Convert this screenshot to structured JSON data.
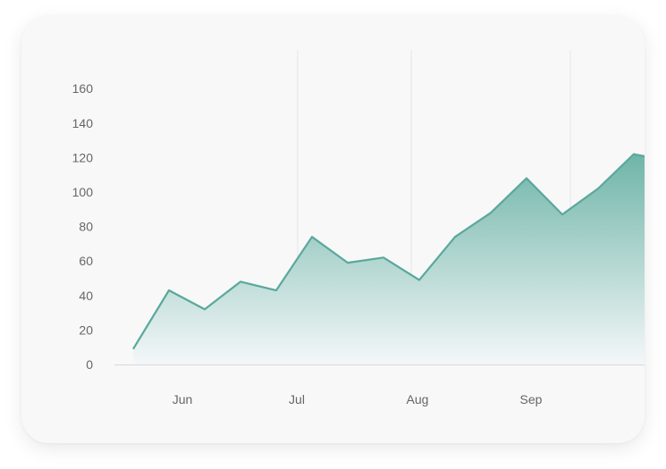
{
  "chart_data": {
    "type": "area",
    "title": "",
    "xlabel": "",
    "ylabel": "",
    "x_tick_labels": [
      "Jun",
      "Jul",
      "Aug",
      "Sep"
    ],
    "y_ticks": [
      0,
      20,
      40,
      60,
      80,
      100,
      120,
      140,
      160
    ],
    "ylim": [
      0,
      170
    ],
    "grid": {
      "vertical": true,
      "horizontal": false
    },
    "legend": "none",
    "series": [
      {
        "values": [
          9,
          43,
          32,
          48,
          43,
          74,
          59,
          62,
          49,
          74,
          88,
          108,
          87,
          102,
          122,
          118
        ]
      }
    ],
    "colors": {
      "line": "#5aa89c",
      "fill_top": "#6fb5a8",
      "fill_bottom": "#f4f7f9",
      "grid": "#e6e6e6",
      "axis": "#d8d8d8",
      "card_background": "#f8f8f8"
    }
  }
}
